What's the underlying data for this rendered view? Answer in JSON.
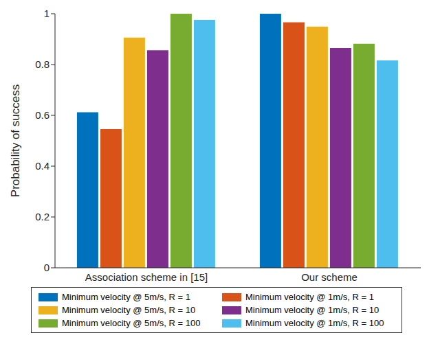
{
  "chart_data": {
    "type": "bar",
    "categories": [
      "Association scheme in [15]",
      "Our scheme"
    ],
    "y_label": "Probability of success",
    "ylim": [
      0,
      1
    ],
    "yticks": [
      0,
      0.2,
      0.4,
      0.6,
      0.8,
      1
    ],
    "grid": false,
    "legend": "bottom",
    "series": [
      {
        "name": "Minimum velocity @ 5m/s, R = 1",
        "color": "#0072BD",
        "values": [
          0.612,
          1.0
        ]
      },
      {
        "name": "Minimum velocity @ 1m/s, R = 1",
        "color": "#D95319",
        "values": [
          0.546,
          0.966
        ]
      },
      {
        "name": "Minimum velocity @ 5m/s, R = 10",
        "color": "#EDB120",
        "values": [
          0.906,
          0.949
        ]
      },
      {
        "name": "Minimum velocity @ 1m/s, R = 10",
        "color": "#7E2F8E",
        "values": [
          0.856,
          0.865
        ]
      },
      {
        "name": "Minimum velocity @ 5m/s, R = 100",
        "color": "#77AC30",
        "values": [
          1.0,
          0.882
        ]
      },
      {
        "name": "Minimum velocity @ 1m/s, R = 100",
        "color": "#4DBEEE",
        "values": [
          0.976,
          0.816
        ]
      }
    ]
  }
}
